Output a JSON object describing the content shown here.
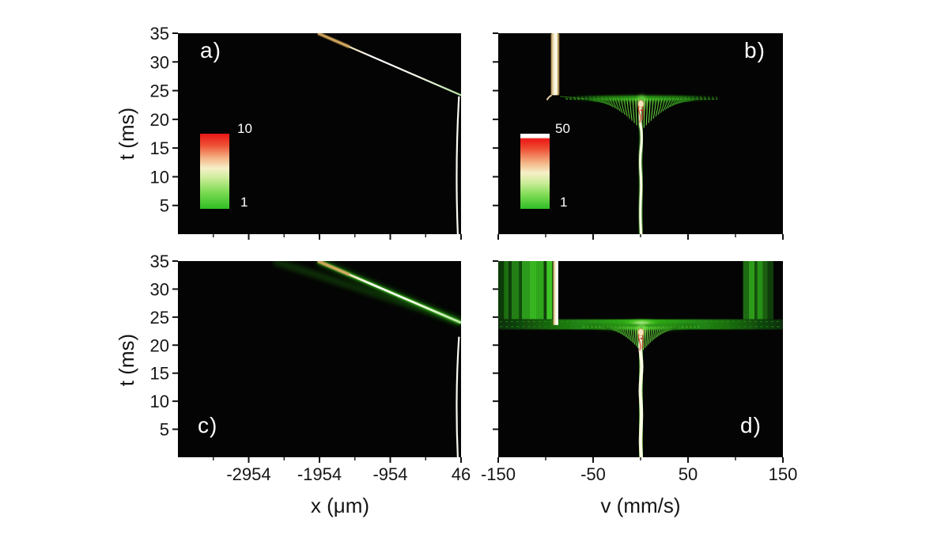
{
  "figure": {
    "background": "#ffffff",
    "panel_background": "#040404",
    "y_axis_label": "t (ms)",
    "x_axis_label_left": "x (μm)",
    "x_axis_label_right": "v (mm/s)",
    "tick_label_color": "#161616",
    "palette": {
      "cream": "#f6edd0",
      "tan": "#cfa257",
      "white": "#ffffff",
      "green_bright": "#46cc22",
      "green_mid": "#2a9e16",
      "green_dark": "#135c0c",
      "red": "#d6503a"
    }
  },
  "chart_data": [
    {
      "id": "a",
      "type": "heatmap",
      "label": "a)",
      "row": "top",
      "col": "left",
      "x_range": [
        -3954,
        46
      ],
      "t_range": [
        0,
        35
      ],
      "x_major_ticks": [
        -2954,
        -1954,
        -954,
        46
      ],
      "x_minor_ticks": [
        -3454,
        -2454,
        -1454,
        -454
      ],
      "t_ticks": [
        5,
        10,
        15,
        20,
        25,
        30,
        35
      ],
      "show_x_tick_labels": false,
      "show_t_tick_labels": true,
      "colorbar": {
        "max_label": "10",
        "min_label": "1",
        "white_cap": false
      },
      "features": {
        "streak": {
          "from": {
            "x": -1976,
            "t": 35
          },
          "to": {
            "x": 46,
            "t": 24.2
          },
          "glow": false
        },
        "rest_line": {
          "x": 0,
          "t_top": 24,
          "t_bottom": 0
        }
      }
    },
    {
      "id": "b",
      "type": "heatmap",
      "label": "b)",
      "row": "top",
      "col": "right",
      "x_range": [
        -150,
        150
      ],
      "t_range": [
        0,
        35
      ],
      "x_major_ticks": [
        -150,
        -50,
        50,
        150
      ],
      "x_minor_ticks": [
        -100,
        0,
        100
      ],
      "t_ticks": [
        5,
        10,
        15,
        20,
        25,
        30,
        35
      ],
      "show_x_tick_labels": false,
      "show_t_tick_labels": false,
      "colorbar": {
        "max_label": "50",
        "min_label": "1",
        "white_cap": true
      },
      "features": {
        "drop_bar": {
          "v": -90,
          "half_width_v": 4.5,
          "t_top": 35,
          "t_bottom": 24.2
        },
        "connector": {
          "from_v": -85,
          "from_t": 24,
          "to_v": -58,
          "to_t": 23.6
        },
        "fan": {
          "center_v": 1,
          "t": 23.4,
          "spread_v": 58,
          "wing_v": 80,
          "max_len_ms": 5
        },
        "filament": {
          "points": [
            [
              0.5,
              23.2
            ],
            [
              -1.5,
              20.5
            ],
            [
              2,
              17
            ],
            [
              -1,
              13
            ],
            [
              1,
              9
            ],
            [
              -0.5,
              4
            ],
            [
              0.5,
              0
            ]
          ],
          "red_detail": true,
          "weight": 1
        }
      }
    },
    {
      "id": "c",
      "type": "heatmap",
      "label": "c)",
      "row": "bottom",
      "col": "left",
      "x_range": [
        -3954,
        46
      ],
      "t_range": [
        0,
        35
      ],
      "x_major_ticks": [
        -2954,
        -1954,
        -954,
        46
      ],
      "x_minor_ticks": [
        -3454,
        -2454,
        -1454,
        -454
      ],
      "t_ticks": [
        5,
        10,
        15,
        20,
        25,
        30,
        35
      ],
      "show_x_tick_labels": true,
      "show_t_tick_labels": true,
      "features": {
        "streak": {
          "from": {
            "x": -1976,
            "t": 35
          },
          "to": {
            "x": 46,
            "t": 24
          },
          "glow": true
        },
        "haze": {
          "from": {
            "x": -2600,
            "t": 35
          },
          "to": {
            "x": 0,
            "t": 24.4
          }
        },
        "rest_line": {
          "x": 0,
          "t_top": 21.5,
          "t_bottom": 0
        }
      }
    },
    {
      "id": "d",
      "type": "heatmap",
      "label": "d)",
      "row": "bottom",
      "col": "right",
      "x_range": [
        -150,
        150
      ],
      "t_range": [
        0,
        35
      ],
      "x_major_ticks": [
        -150,
        -50,
        50,
        150
      ],
      "x_minor_ticks": [
        -100,
        0,
        100
      ],
      "t_ticks": [
        5,
        10,
        15,
        20,
        25,
        30,
        35
      ],
      "show_x_tick_labels": true,
      "show_t_tick_labels": false,
      "features": {
        "stripes": {
          "t_bottom": 24.6,
          "left": [
            {
              "v0": -150,
              "v1": -144,
              "c": "#0d3a09"
            },
            {
              "v0": -144,
              "v1": -139,
              "c": "#1d6f12"
            },
            {
              "v0": -139,
              "v1": -136,
              "c": "#0e3c0a"
            },
            {
              "v0": -136,
              "v1": -128,
              "c": "#237f15"
            },
            {
              "v0": -128,
              "v1": -125,
              "c": "#114a0c"
            },
            {
              "v0": -125,
              "v1": -117,
              "c": "#2c9a1a"
            },
            {
              "v0": -117,
              "v1": -110,
              "c": "#37b520"
            },
            {
              "v0": -110,
              "v1": -102,
              "c": "#2fa51b"
            },
            {
              "v0": -102,
              "v1": -99,
              "c": "#123f0d"
            },
            {
              "v0": -99,
              "v1": -93,
              "c": "#3fc426"
            },
            {
              "v0": -93,
              "v1": -92,
              "c": "#0a2a07"
            }
          ],
          "right": [
            {
              "v0": 108,
              "v1": 114,
              "c": "#1d6b12"
            },
            {
              "v0": 114,
              "v1": 120,
              "c": "#2d9a1a"
            },
            {
              "v0": 120,
              "v1": 123,
              "c": "#14500d"
            },
            {
              "v0": 123,
              "v1": 129,
              "c": "#269017"
            },
            {
              "v0": 129,
              "v1": 134,
              "c": "#1a5e10"
            },
            {
              "v0": 134,
              "v1": 140,
              "c": "#0f3e0a"
            }
          ]
        },
        "cream_bar": {
          "v": -89.5,
          "half_width_v": 2.8,
          "t_top": 35,
          "t_bottom": 23.6
        },
        "band": {
          "t_center": 23.7,
          "half_t_ms": 0.9,
          "center_v": 1
        },
        "fan": {
          "center_v": 1,
          "t": 23.1,
          "spread_v": 42,
          "wing_v": 62,
          "max_len_ms": 4
        },
        "filament": {
          "points": [
            [
              1,
              22.8
            ],
            [
              -1.5,
              20
            ],
            [
              2,
              16.5
            ],
            [
              -1,
              12
            ],
            [
              1.5,
              8
            ],
            [
              -0.5,
              3
            ],
            [
              0.8,
              0
            ]
          ],
          "red_detail": true,
          "weight": 1.4
        }
      }
    }
  ]
}
